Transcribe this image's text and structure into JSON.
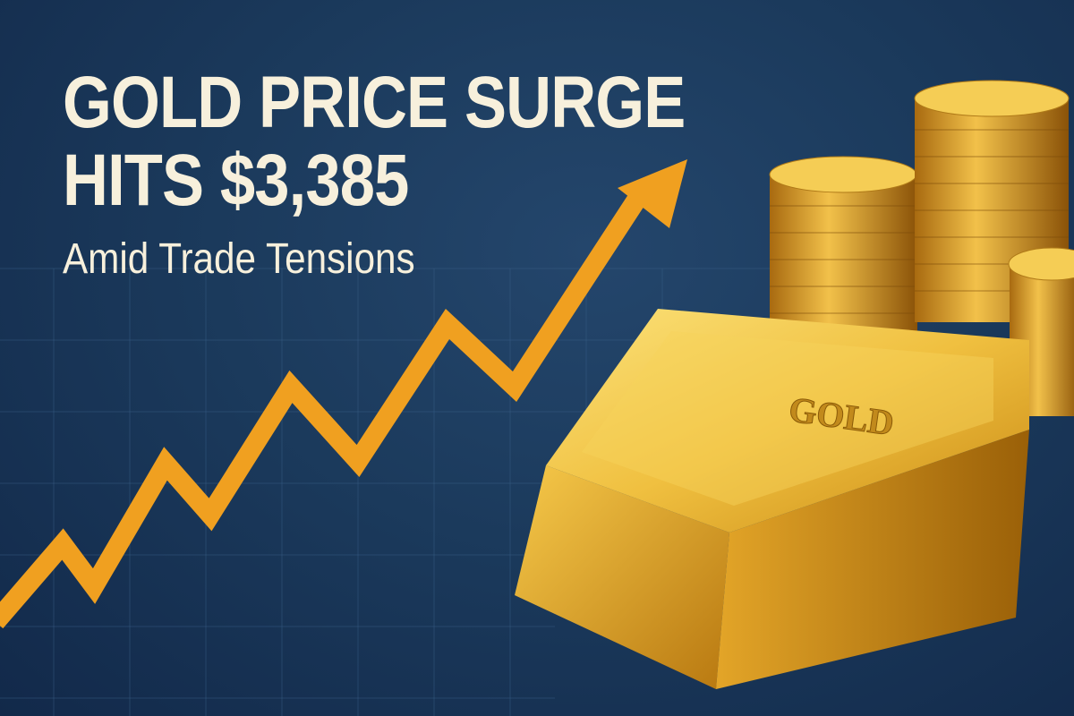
{
  "headline": {
    "line1": "GOLD PRICE SURGE",
    "line2": "HITS $3,385",
    "subtitle": "Amid Trade Tensions"
  },
  "bar_engraving": "GOLD",
  "colors": {
    "background": "#1b3a5c",
    "text": "#f7f0dc",
    "arrow": "#f0a020",
    "gold": "#e0a526"
  },
  "icons": [
    "trend-up-arrow-icon",
    "gold-bar-icon",
    "coin-stack-icon"
  ]
}
